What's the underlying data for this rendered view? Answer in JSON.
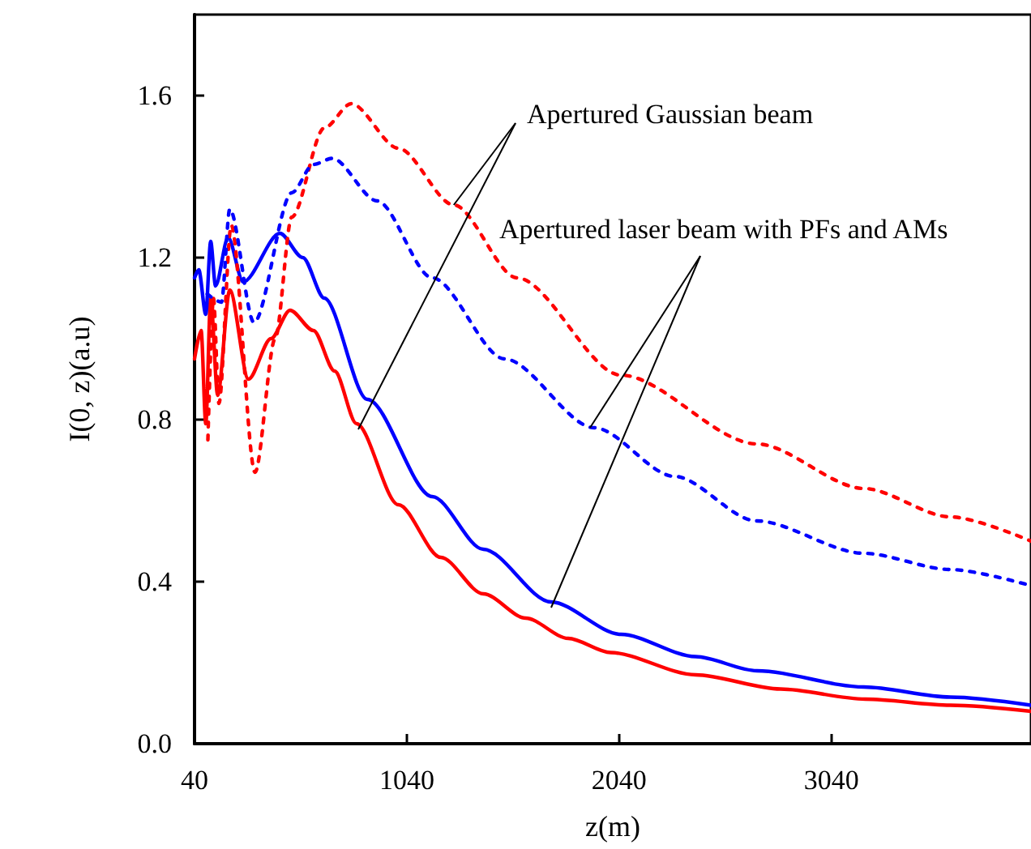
{
  "chart_data": {
    "type": "line",
    "xlabel": "z(m)",
    "ylabel": "I(0, z)(a.u)",
    "xlim": [
      40,
      3980
    ],
    "xticks": [
      40,
      1040,
      2040,
      3040
    ],
    "ylim": [
      0,
      1.8
    ],
    "yticks": [
      {
        "value": 0,
        "label": "0.0"
      },
      0.4,
      0.8,
      1.2,
      1.6
    ],
    "grid": false,
    "marker": "none",
    "annotations": [
      {
        "text": "Apertured Gaussian beam",
        "x": 1261,
        "y": 1.33
      },
      {
        "text": "Apertured laser beam with PFs and AMs",
        "x": 1903,
        "y": 0.78
      }
    ],
    "series": [
      {
        "color": "#ff0000",
        "line_style": "solid",
        "x": [
          40,
          71,
          93,
          116,
          149,
          206,
          294,
          400,
          490,
          600,
          700,
          803,
          1000,
          1200,
          1400,
          1600,
          1800,
          2000,
          2400,
          2800,
          3200,
          3600,
          3980
        ],
        "values": [
          0.95,
          1.02,
          0.79,
          1.1,
          0.86,
          1.12,
          0.9,
          1.0,
          1.07,
          1.02,
          0.92,
          0.79,
          0.59,
          0.46,
          0.37,
          0.31,
          0.26,
          0.225,
          0.17,
          0.135,
          0.11,
          0.095,
          0.08
        ]
      },
      {
        "color": "#0000ff",
        "line_style": "solid",
        "x": [
          40,
          60,
          93,
          116,
          139,
          198,
          269,
          442,
          550,
          651,
          854,
          1160,
          1400,
          1719,
          2048,
          2400,
          2689,
          3193,
          3600,
          3980
        ],
        "values": [
          1.15,
          1.17,
          1.06,
          1.24,
          1.13,
          1.25,
          1.14,
          1.26,
          1.2,
          1.1,
          0.85,
          0.61,
          0.48,
          0.35,
          0.27,
          0.215,
          0.18,
          0.14,
          0.115,
          0.095
        ]
      },
      {
        "color": "#ff0000",
        "line_style": "dotted",
        "x": [
          103,
          129,
          155,
          213,
          325,
          420,
          498,
          651,
          778,
          1000,
          1261,
          1559,
          2048,
          2689,
          3193,
          3600,
          3980
        ],
        "values": [
          0.75,
          1.1,
          0.84,
          1.28,
          0.67,
          1.0,
          1.3,
          1.52,
          1.58,
          1.47,
          1.33,
          1.15,
          0.91,
          0.74,
          0.63,
          0.56,
          0.5
        ]
      },
      {
        "color": "#0000ff",
        "line_style": "dotted",
        "x": [
          100,
          167,
          206,
          320,
          498,
          600,
          689,
          900,
          1160,
          1500,
          1923,
          2300,
          2687,
          3193,
          3600,
          3980
        ],
        "values": [
          1.11,
          1.09,
          1.32,
          1.04,
          1.36,
          1.43,
          1.445,
          1.34,
          1.15,
          0.95,
          0.78,
          0.66,
          0.55,
          0.47,
          0.43,
          0.39
        ]
      }
    ]
  }
}
